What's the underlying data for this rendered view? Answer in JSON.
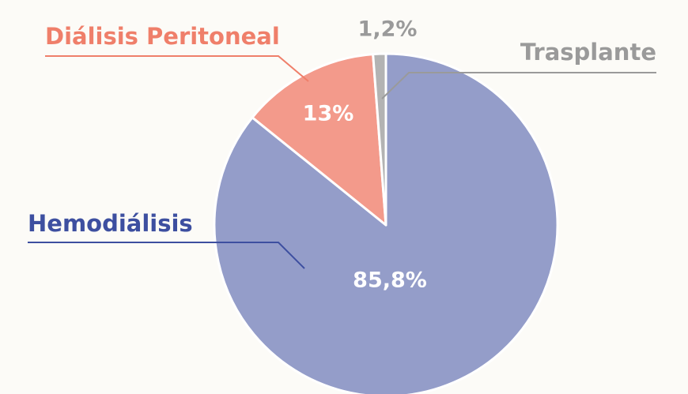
{
  "chart_data": {
    "type": "pie",
    "categories": [
      "Hemodiálisis",
      "Diálisis Peritoneal",
      "Trasplante"
    ],
    "values": [
      85.8,
      13,
      1.2
    ],
    "value_labels": [
      "85,8%",
      "13%",
      "1,2%"
    ],
    "colors": [
      "#949dc9",
      "#f39a8b",
      "#b3b3b3"
    ],
    "label_colors": [
      "#3d4fa0",
      "#ef7f6a",
      "#9a9a9a"
    ]
  }
}
